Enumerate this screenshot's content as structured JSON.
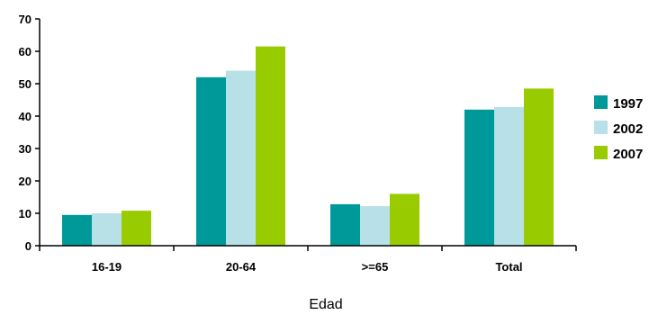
{
  "chart_data": {
    "type": "bar",
    "categories": [
      "16-19",
      "20-64",
      ">=65",
      "Total"
    ],
    "series": [
      {
        "name": "1997",
        "color": "#009999",
        "values": [
          9.5,
          52,
          12.8,
          42
        ]
      },
      {
        "name": "2002",
        "color": "#b7e1e6",
        "values": [
          10,
          54,
          12.2,
          42.8
        ]
      },
      {
        "name": "2007",
        "color": "#99cc00",
        "values": [
          10.8,
          61.5,
          16,
          48.5
        ]
      }
    ],
    "title": "",
    "xlabel": "Edad",
    "ylabel": "",
    "ylim": [
      0,
      70
    ],
    "yticks": [
      0,
      10,
      20,
      30,
      40,
      50,
      60,
      70
    ],
    "grid": false,
    "legend": "right"
  }
}
